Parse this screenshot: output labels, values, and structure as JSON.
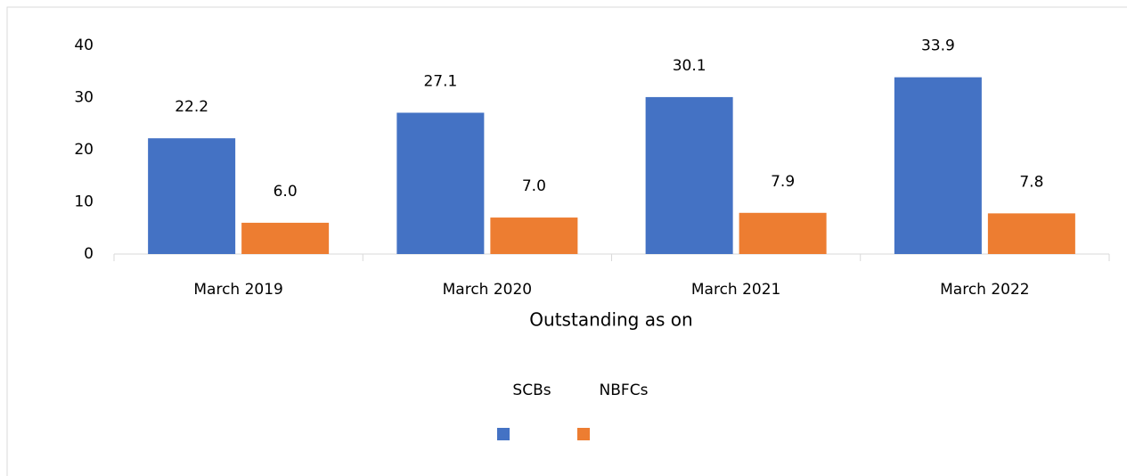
{
  "chart_data": {
    "type": "bar",
    "x_label": "Outstanding as on",
    "categories": [
      "March 2019",
      "March 2020",
      "March 2021",
      "March 2022"
    ],
    "series": [
      {
        "name": "SCBs",
        "color": "#4472c4",
        "values": [
          22.2,
          27.1,
          30.1,
          33.9
        ],
        "value_labels": [
          "22.2",
          "27.1",
          "30.1",
          "33.9"
        ]
      },
      {
        "name": "NBFCs",
        "color": "#ed7d31",
        "values": [
          6,
          7,
          7.9,
          7.8
        ],
        "value_labels": [
          "6.0",
          "7.0",
          "7.9",
          "7.8"
        ]
      }
    ],
    "ylim": [
      0,
      40
    ],
    "yticks": [
      0,
      10,
      20,
      30,
      40
    ],
    "grid": false
  }
}
